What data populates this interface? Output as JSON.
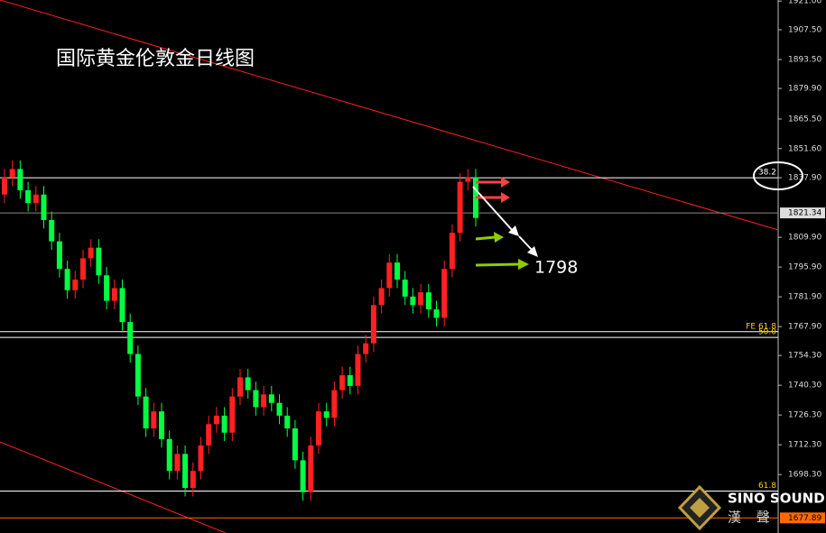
{
  "chart_data": {
    "type": "candlestick",
    "title": "国际黄金伦敦金日线图",
    "annotation": "1798",
    "brand": "SINO SOUND",
    "brand_sub": "漢 聲",
    "up_color": "#ff2020",
    "down_color": "#00ff40",
    "ylim": [
      1670.8,
      1921.5
    ],
    "yticks": [
      {
        "value": 1921.0,
        "label": "1921.00"
      },
      {
        "value": 1907.5,
        "label": "1907.50"
      },
      {
        "value": 1893.5,
        "label": "1893.50"
      },
      {
        "value": 1879.9,
        "label": "1879.90"
      },
      {
        "value": 1865.5,
        "label": "1865.50"
      },
      {
        "value": 1851.6,
        "label": "1851.60"
      },
      {
        "value": 1837.9,
        "label": "1837.90"
      },
      {
        "value": 1809.9,
        "label": "1809.90"
      },
      {
        "value": 1795.9,
        "label": "1795.90"
      },
      {
        "value": 1781.9,
        "label": "1781.90"
      },
      {
        "value": 1767.9,
        "label": "1767.90"
      },
      {
        "value": 1754.3,
        "label": "1754.30"
      },
      {
        "value": 1740.3,
        "label": "1740.30"
      },
      {
        "value": 1726.3,
        "label": "1726.30"
      },
      {
        "value": 1712.3,
        "label": "1712.30"
      },
      {
        "value": 1698.3,
        "label": "1698.30"
      }
    ],
    "levels": [
      {
        "value": 1837.9,
        "label": "38.2",
        "color": "#ffffff"
      },
      {
        "value": 1821.34,
        "label": "1821.34",
        "color": "#888888"
      },
      {
        "value": 1765.5,
        "label": "FE 61.8",
        "color": "#ffffff"
      },
      {
        "value": 1762.8,
        "label": "50.0",
        "color": "#ffffff"
      },
      {
        "value": 1690.5,
        "label": "61.8",
        "color": "#ffffff"
      },
      {
        "value": 1677.89,
        "label": "1677.89",
        "color": "#ff6a00"
      }
    ],
    "open": [
      1830,
      1838,
      1842,
      1832,
      1826,
      1830,
      1818,
      1808,
      1795,
      1785,
      1790,
      1800,
      1805,
      1792,
      1780,
      1786,
      1770,
      1755,
      1735,
      1720,
      1728,
      1715,
      1700,
      1708,
      1692,
      1700,
      1712,
      1722,
      1726,
      1718,
      1735,
      1744,
      1738,
      1730,
      1736,
      1732,
      1726,
      1720,
      1705,
      1690,
      1712,
      1728,
      1725,
      1738,
      1745,
      1740,
      1755,
      1760,
      1778,
      1786,
      1798,
      1790,
      1782,
      1778,
      1784,
      1776,
      1772,
      1795,
      1812,
      1836,
      1838
    ],
    "high": [
      1842,
      1846,
      1846,
      1836,
      1834,
      1834,
      1822,
      1812,
      1799,
      1794,
      1804,
      1809,
      1809,
      1796,
      1790,
      1790,
      1774,
      1759,
      1739,
      1732,
      1732,
      1719,
      1712,
      1712,
      1704,
      1716,
      1726,
      1730,
      1730,
      1739,
      1748,
      1748,
      1742,
      1740,
      1740,
      1736,
      1730,
      1724,
      1709,
      1716,
      1732,
      1732,
      1742,
      1749,
      1749,
      1759,
      1764,
      1782,
      1790,
      1802,
      1802,
      1794,
      1786,
      1788,
      1788,
      1780,
      1799,
      1816,
      1840,
      1842,
      1842
    ],
    "low": [
      1826,
      1834,
      1828,
      1822,
      1822,
      1814,
      1804,
      1791,
      1781,
      1781,
      1786,
      1796,
      1788,
      1776,
      1776,
      1766,
      1751,
      1731,
      1716,
      1716,
      1711,
      1696,
      1696,
      1688,
      1688,
      1696,
      1708,
      1718,
      1714,
      1714,
      1731,
      1734,
      1726,
      1726,
      1728,
      1722,
      1716,
      1701,
      1686,
      1686,
      1708,
      1721,
      1721,
      1734,
      1736,
      1736,
      1751,
      1756,
      1774,
      1782,
      1786,
      1778,
      1774,
      1774,
      1772,
      1768,
      1768,
      1791,
      1808,
      1832,
      1815
    ],
    "close": [
      1838,
      1842,
      1832,
      1826,
      1830,
      1818,
      1808,
      1795,
      1785,
      1790,
      1800,
      1805,
      1792,
      1780,
      1786,
      1770,
      1755,
      1735,
      1720,
      1728,
      1715,
      1700,
      1708,
      1692,
      1700,
      1712,
      1722,
      1726,
      1718,
      1735,
      1744,
      1738,
      1730,
      1736,
      1732,
      1726,
      1720,
      1705,
      1690,
      1712,
      1728,
      1725,
      1738,
      1745,
      1740,
      1755,
      1760,
      1778,
      1786,
      1798,
      1790,
      1782,
      1778,
      1784,
      1776,
      1772,
      1795,
      1812,
      1836,
      1838,
      1819
    ]
  }
}
